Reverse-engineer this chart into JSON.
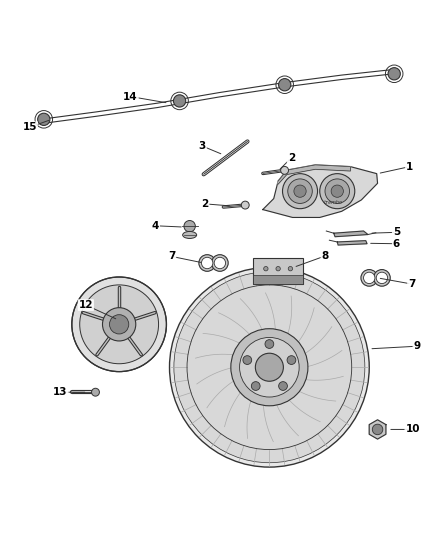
{
  "title": "",
  "background_color": "#ffffff",
  "line_color": "#333333",
  "label_color": "#000000",
  "fig_width": 4.38,
  "fig_height": 5.33,
  "dpi": 100
}
